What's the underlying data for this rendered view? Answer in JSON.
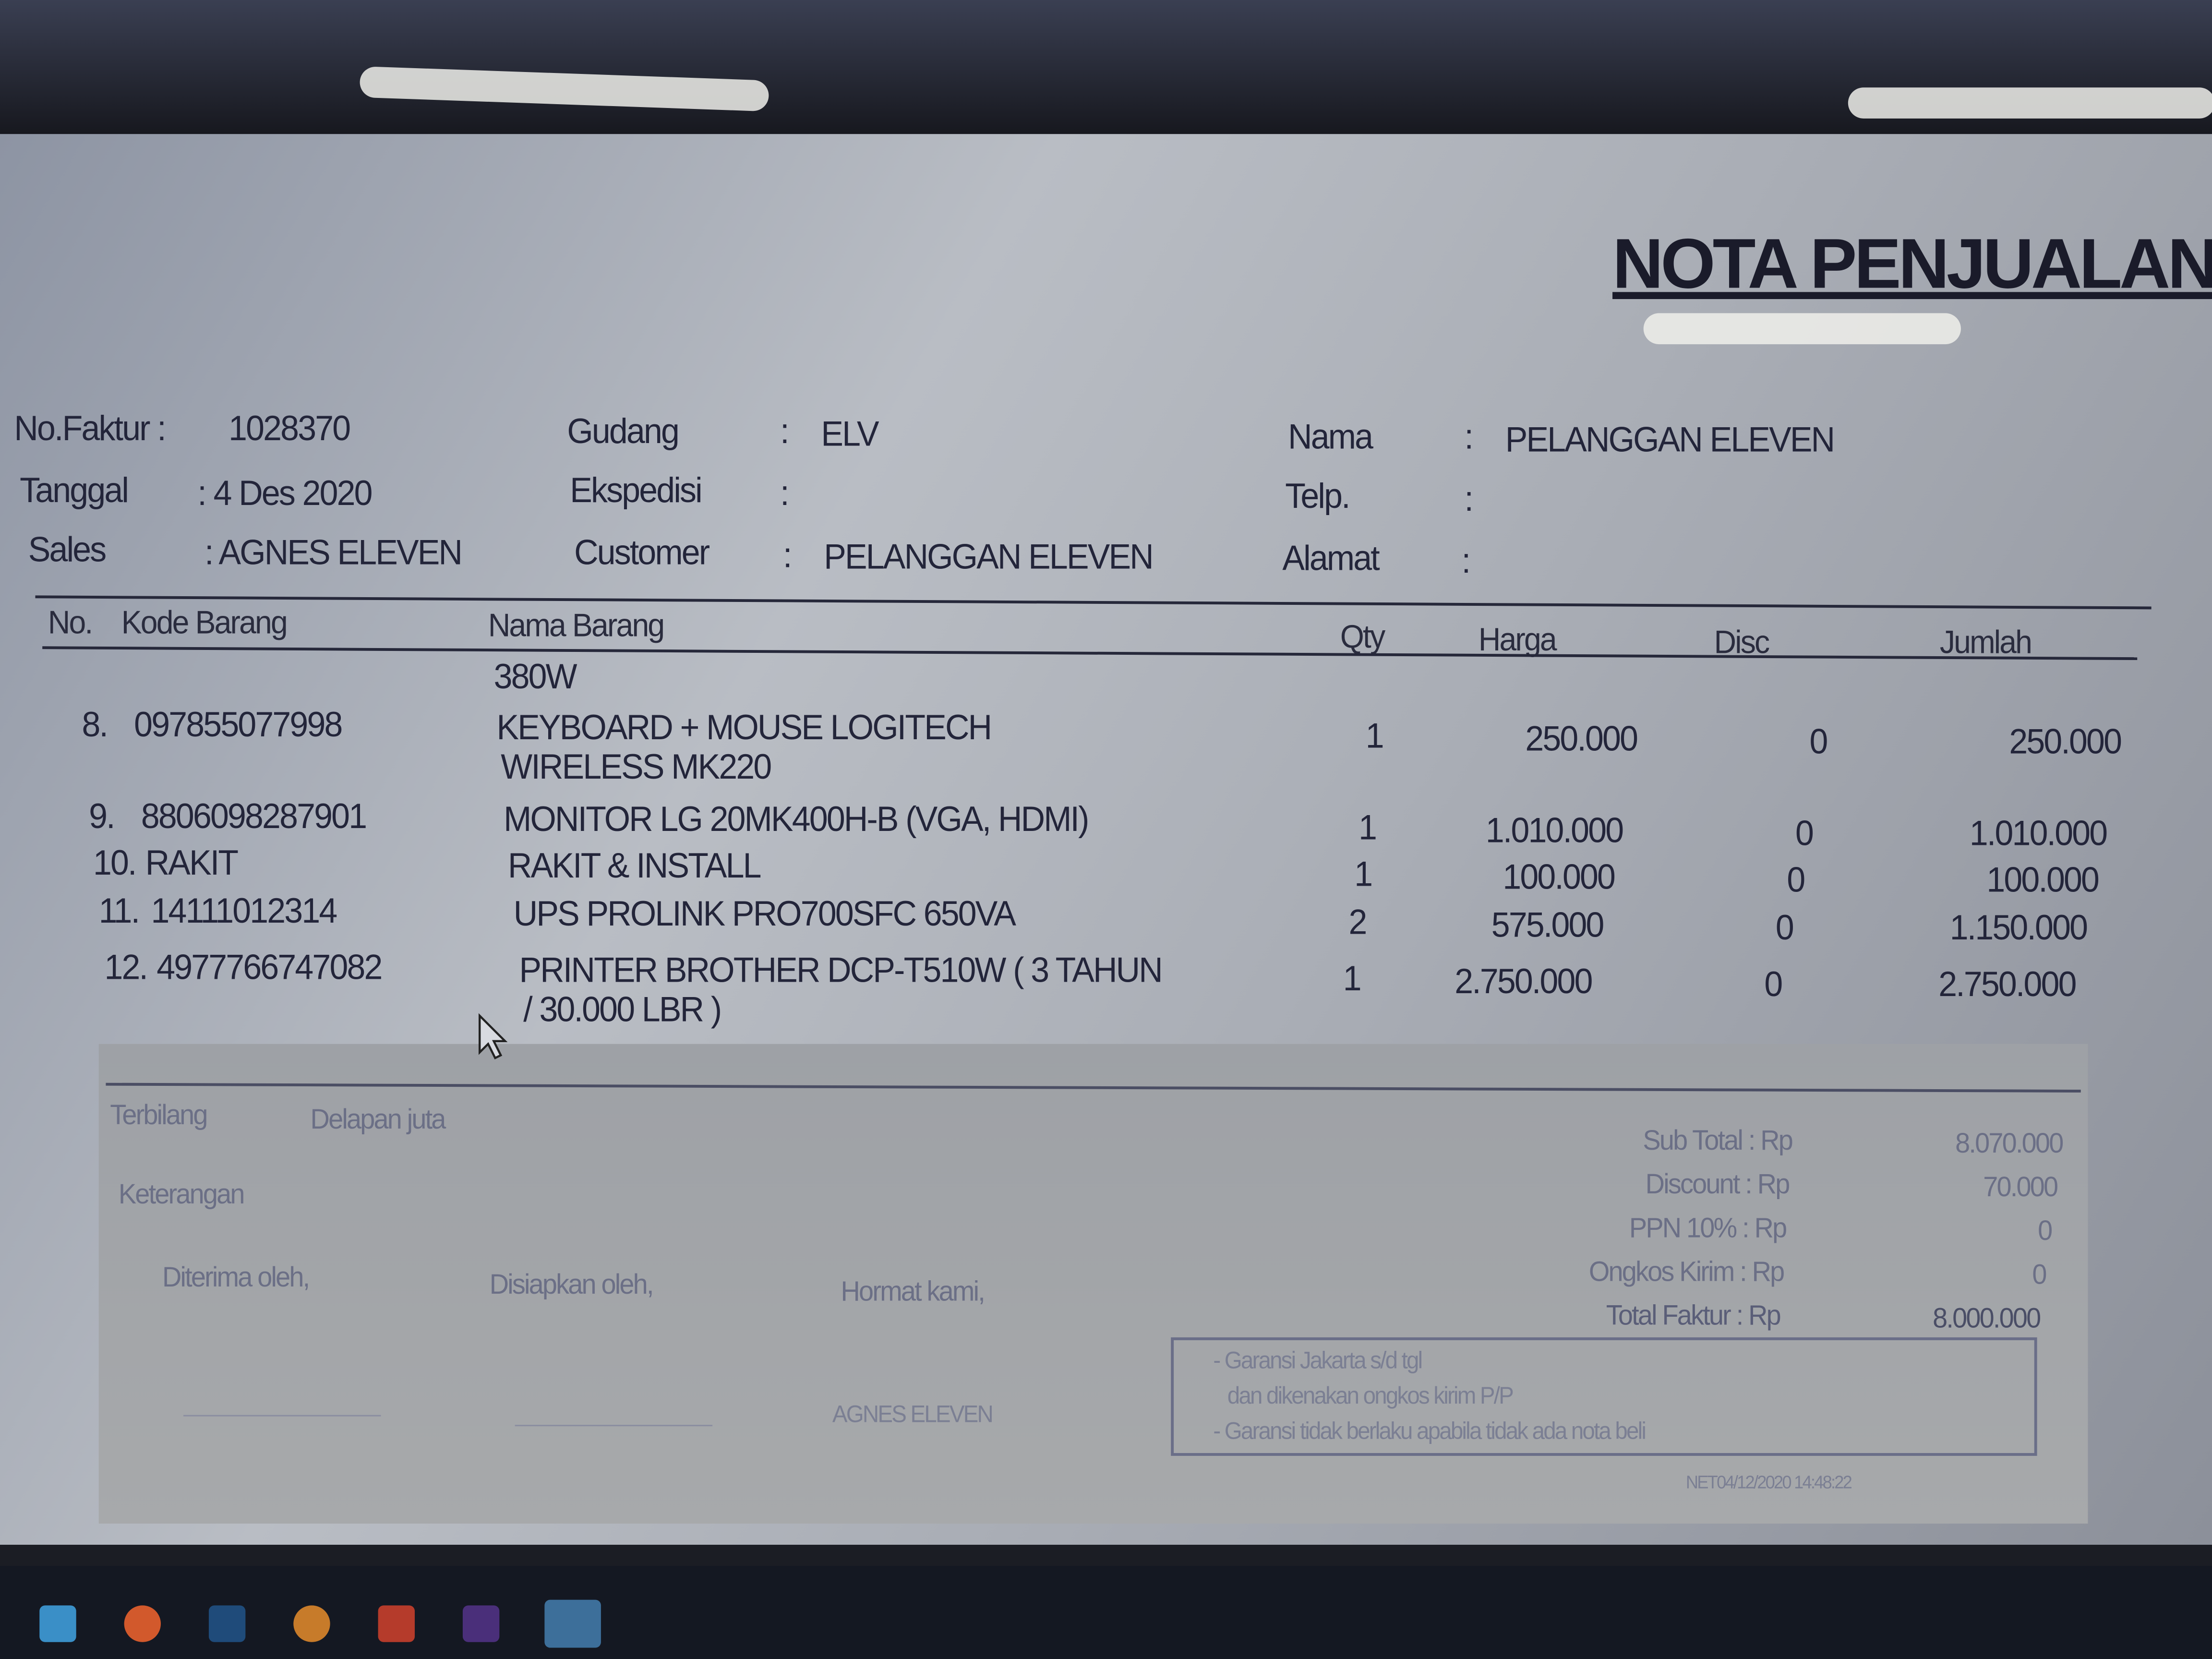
{
  "title": "NOTA PENJUALAN",
  "header": {
    "no_faktur_label": "No.Faktur :",
    "no_faktur": "1028370",
    "tanggal_label": "Tanggal",
    "tanggal": ": 4 Des 2020",
    "sales_label": "Sales",
    "sales": ": AGNES ELEVEN",
    "gudang_label": "Gudang",
    "gudang": "ELV",
    "ekspedisi_label": "Ekspedisi",
    "ekspedisi": "",
    "customer_label": "Customer",
    "customer": "PELANGGAN ELEVEN",
    "nama_label": "Nama",
    "nama": "PELANGGAN ELEVEN",
    "telp_label": "Telp.",
    "telp": "",
    "alamat_label": "Alamat",
    "alamat": "",
    "colon": ":"
  },
  "columns": {
    "no": "No.",
    "kode": "Kode Barang",
    "nama": "Nama Barang",
    "qty": "Qty",
    "harga": "Harga",
    "disc": "Disc",
    "jumlah": "Jumlah"
  },
  "continued_line": "380W",
  "items": [
    {
      "no": "8.",
      "kode": "097855077998",
      "nama": "KEYBOARD + MOUSE LOGITECH",
      "nama2": "WIRELESS MK220",
      "qty": "1",
      "harga": "250.000",
      "disc": "0",
      "jumlah": "250.000"
    },
    {
      "no": "9.",
      "kode": "8806098287901",
      "nama": "MONITOR LG 20MK400H-B (VGA, HDMI)",
      "nama2": "",
      "qty": "1",
      "harga": "1.010.000",
      "disc": "0",
      "jumlah": "1.010.000"
    },
    {
      "no": "10.",
      "kode": "RAKIT",
      "nama": "RAKIT & INSTALL",
      "nama2": "",
      "qty": "1",
      "harga": "100.000",
      "disc": "0",
      "jumlah": "100.000"
    },
    {
      "no": "11.",
      "kode": "14111012314",
      "nama": "UPS PROLINK PRO700SFC 650VA",
      "nama2": "",
      "qty": "2",
      "harga": "575.000",
      "disc": "0",
      "jumlah": "1.150.000"
    },
    {
      "no": "12.",
      "kode": "4977766747082",
      "nama": "PRINTER BROTHER DCP-T510W ( 3 TAHUN",
      "nama2": "/ 30.000 LBR )",
      "qty": "1",
      "harga": "2.750.000",
      "disc": "0",
      "jumlah": "2.750.000"
    }
  ],
  "footer": {
    "terbilang_label": "Terbilang",
    "terbilang": "Delapan juta",
    "keterangan_label": "Keterangan",
    "diterima": "Diterima oleh,",
    "disiapkan": "Disiapkan oleh,",
    "hormat": "Hormat kami,",
    "signer": "AGNES ELEVEN",
    "totals": [
      {
        "label": "Sub Total : Rp",
        "value": "8.070.000"
      },
      {
        "label": "Discount : Rp",
        "value": "70.000"
      },
      {
        "label": "PPN 10% : Rp",
        "value": "0"
      },
      {
        "label": "Ongkos Kirim : Rp",
        "value": "0"
      },
      {
        "label": "Total Faktur : Rp",
        "value": "8.000.000"
      }
    ],
    "notes": [
      "- Garansi Jakarta s/d tgl",
      "  dan dikenakan ongkos kirim P/P",
      "- Garansi tidak berlaku apabila tidak ada nota beli"
    ],
    "print_stamp": "NET04/12/2020 14:48:22"
  }
}
